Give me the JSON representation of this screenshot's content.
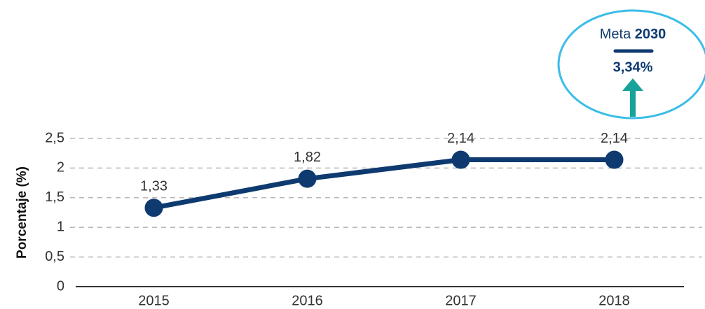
{
  "chart_data": {
    "type": "line",
    "y_label": "Porcentaje (%)",
    "categories": [
      "2015",
      "2016",
      "2017",
      "2018"
    ],
    "values": [
      1.33,
      1.82,
      2.14,
      2.14
    ],
    "value_labels": [
      "1,33",
      "1,82",
      "2,14",
      "2,14"
    ],
    "color": "#0e3a70",
    "ylim": [
      0,
      2.5
    ],
    "yticks": [
      {
        "value": 0,
        "label": "0"
      },
      {
        "value": 0.5,
        "label": "0,5"
      },
      {
        "value": 1,
        "label": "1"
      },
      {
        "value": 1.5,
        "label": "1,5"
      },
      {
        "value": 2,
        "label": "2"
      },
      {
        "value": 2.5,
        "label": "2,5"
      }
    ],
    "grid": true,
    "annotation": {
      "text": "Meta",
      "year": "2030",
      "label": "3,34%"
    }
  }
}
